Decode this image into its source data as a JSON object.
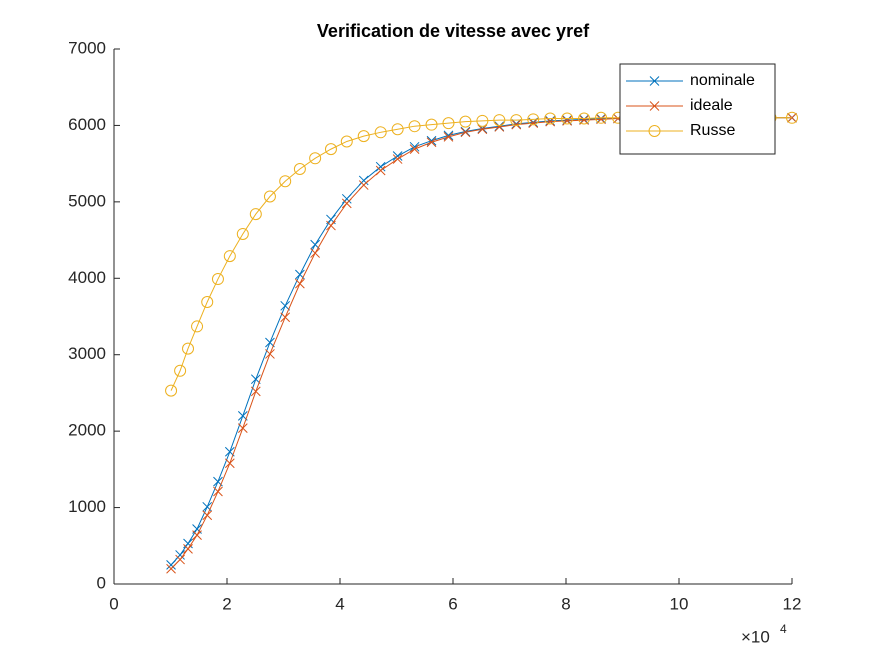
{
  "chart_data": {
    "type": "line",
    "title": "Verification de vitesse avec yref",
    "x": [
      1.01,
      1.17,
      1.31,
      1.47,
      1.65,
      1.84,
      2.05,
      2.28,
      2.51,
      2.76,
      3.03,
      3.29,
      3.56,
      3.84,
      4.12,
      4.42,
      4.72,
      5.02,
      5.32,
      5.62,
      5.92,
      6.22,
      6.52,
      6.82,
      7.12,
      7.42,
      7.72,
      8.02,
      8.32,
      8.62,
      8.92,
      9.22,
      9.52,
      9.82,
      10.12,
      10.42,
      10.72,
      11.02,
      11.32,
      11.62,
      12
    ],
    "series": [
      {
        "name": "nominale",
        "color": "#0072BD",
        "marker": "x",
        "values": [
          250,
          380,
          530,
          720,
          1010,
          1340,
          1730,
          2200,
          2680,
          3160,
          3640,
          4050,
          4440,
          4770,
          5040,
          5280,
          5460,
          5600,
          5720,
          5800,
          5870,
          5920,
          5960,
          5990,
          6020,
          6040,
          6060,
          6070,
          6080,
          6090,
          6090,
          6095,
          6100,
          6100,
          6100,
          6100,
          6100,
          6100,
          6100,
          6100,
          6100
        ]
      },
      {
        "name": "ideale",
        "color": "#D95319",
        "marker": "x",
        "values": [
          200,
          320,
          460,
          640,
          900,
          1210,
          1580,
          2040,
          2520,
          3010,
          3490,
          3930,
          4330,
          4690,
          4980,
          5220,
          5410,
          5560,
          5690,
          5780,
          5850,
          5910,
          5950,
          5980,
          6010,
          6030,
          6050,
          6060,
          6070,
          6080,
          6090,
          6090,
          6095,
          6100,
          6100,
          6100,
          6100,
          6100,
          6100,
          6100,
          6100
        ]
      },
      {
        "name": "Russe",
        "color": "#EDB120",
        "marker": "o",
        "values": [
          2530,
          2790,
          3080,
          3370,
          3690,
          3990,
          4290,
          4580,
          4840,
          5070,
          5270,
          5430,
          5570,
          5690,
          5790,
          5860,
          5910,
          5950,
          5990,
          6010,
          6030,
          6050,
          6060,
          6070,
          6070,
          6080,
          6090,
          6090,
          6090,
          6100,
          6100,
          6100,
          6100,
          6100,
          6100,
          6100,
          6100,
          6100,
          6100,
          6100,
          6100
        ]
      }
    ],
    "xlim": [
      0,
      12
    ],
    "xticks": [
      0,
      2,
      4,
      6,
      8,
      10,
      12
    ],
    "x_multiplier": "×10",
    "x_multiplier_exponent": "4",
    "ylim": [
      0,
      7000
    ],
    "yticks": [
      0,
      1000,
      2000,
      3000,
      4000,
      5000,
      6000,
      7000
    ],
    "grid": false,
    "legend": "upper-right"
  }
}
